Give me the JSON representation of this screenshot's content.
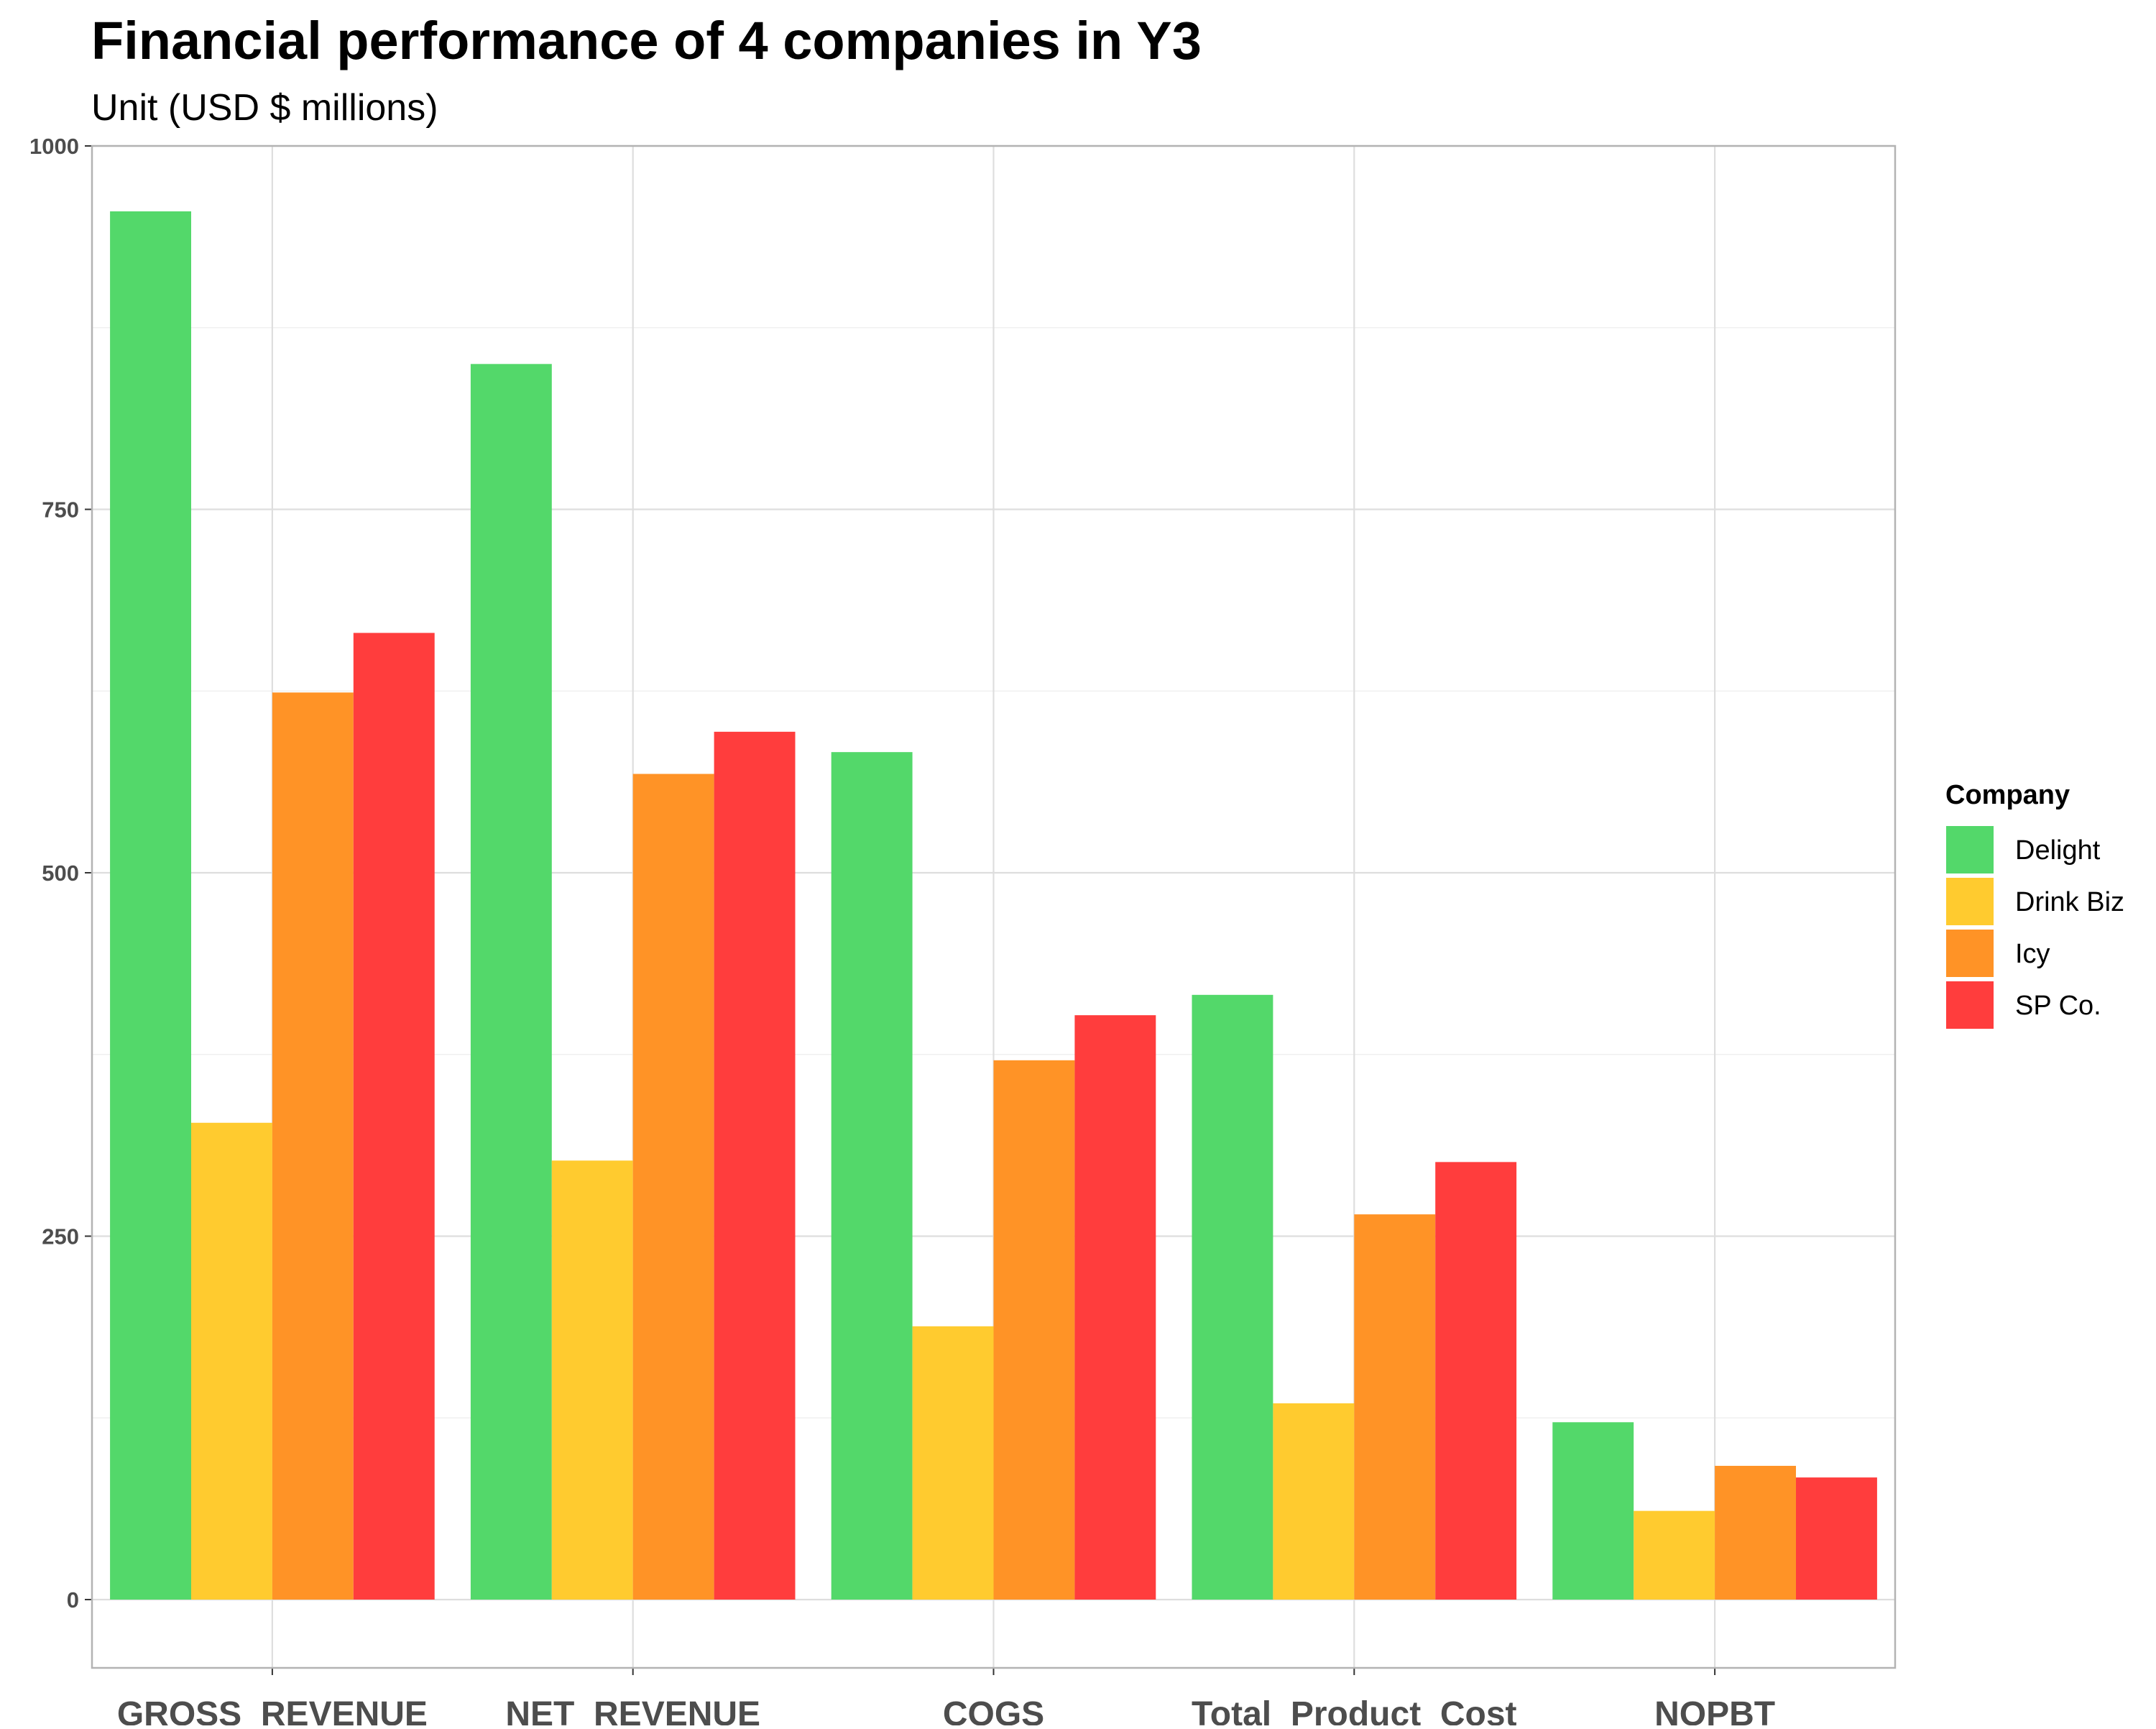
{
  "chart_data": {
    "type": "bar",
    "title": "Financial performance of 4 companies in Y3",
    "subtitle": "Unit (USD $ millions)",
    "xlabel": "",
    "ylabel": "",
    "categories": [
      "GROSS_REVENUE",
      "NET_REVENUE",
      "COGS",
      "Total_Product_Cost",
      "NOPBT"
    ],
    "series": [
      {
        "name": "Delight",
        "color": "#53d86a",
        "values": [
          955,
          850,
          583,
          416,
          122
        ]
      },
      {
        "name": "Drink Biz",
        "color": "#ffcb2f",
        "values": [
          328,
          302,
          188,
          135,
          61
        ]
      },
      {
        "name": "Icy",
        "color": "#ff9326",
        "values": [
          624,
          568,
          371,
          265,
          92
        ]
      },
      {
        "name": "SP Co.",
        "color": "#ff3d3d",
        "values": [
          665,
          597,
          402,
          301,
          84
        ]
      }
    ],
    "y_ticks": [
      0,
      250,
      500,
      750,
      1000
    ],
    "ylim": [
      -47,
      1000
    ],
    "grid": true,
    "legend": {
      "title": "Company",
      "position": "right"
    }
  }
}
